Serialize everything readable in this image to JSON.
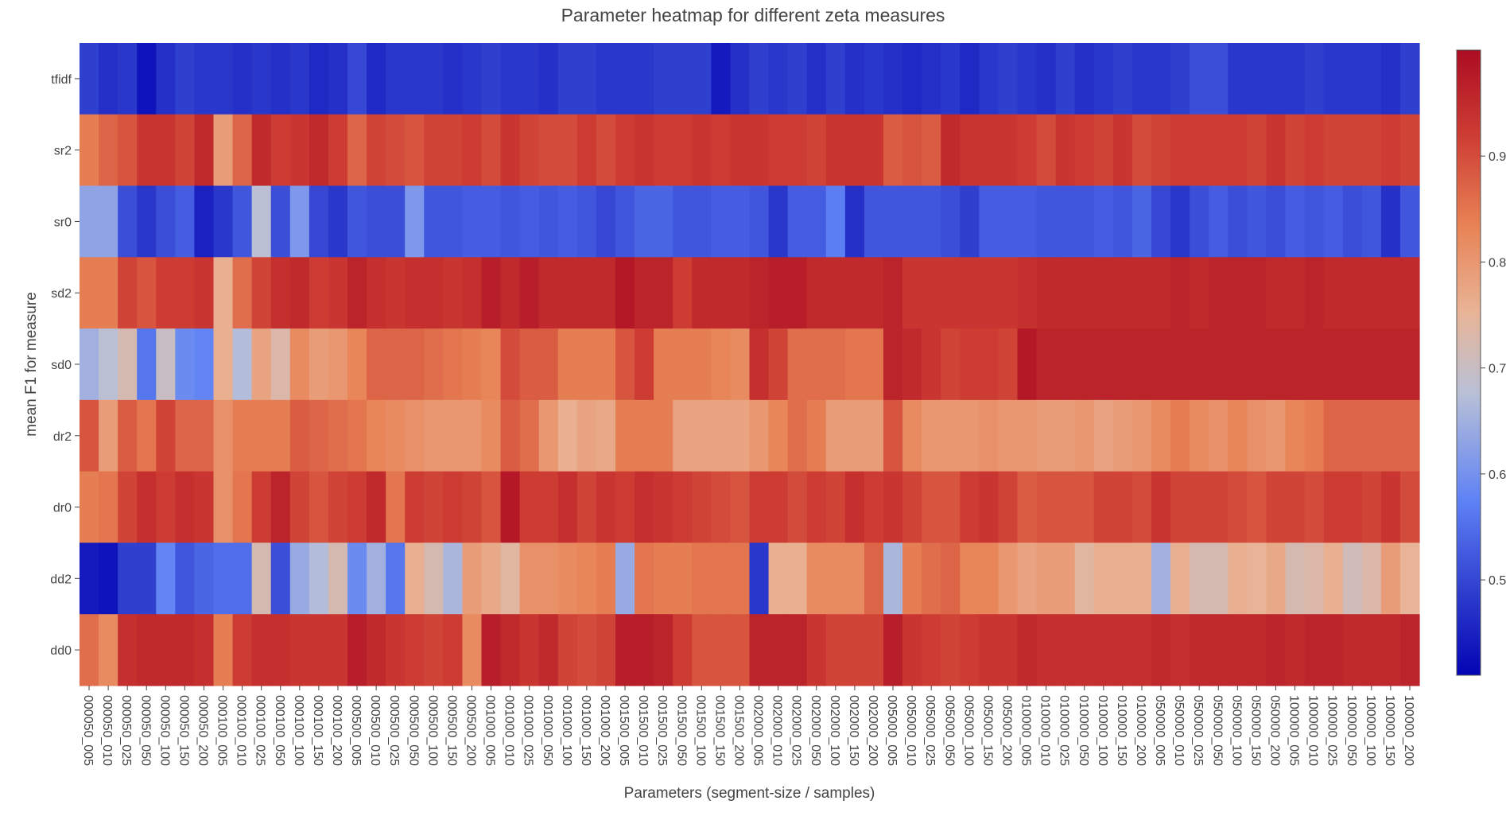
{
  "chart_data": {
    "type": "heatmap",
    "title": "Parameter heatmap for different zeta measures",
    "xlabel": "Parameters (segment-size / samples)",
    "ylabel": "mean F1 for measure",
    "colorscale": "coolwarm",
    "colorbar": {
      "range": [
        0.41,
        1.0
      ],
      "ticks": [
        0.5,
        0.6,
        0.7,
        0.8,
        0.9
      ]
    },
    "x": [
      "000050_005",
      "000050_010",
      "000050_025",
      "000050_050",
      "000050_100",
      "000050_150",
      "000050_200",
      "000100_005",
      "000100_010",
      "000100_025",
      "000100_050",
      "000100_100",
      "000100_150",
      "000100_200",
      "000500_005",
      "000500_010",
      "000500_025",
      "000500_050",
      "000500_100",
      "000500_150",
      "000500_200",
      "001000_005",
      "001000_010",
      "001000_025",
      "001000_050",
      "001000_100",
      "001000_150",
      "001000_200",
      "001500_005",
      "001500_010",
      "001500_025",
      "001500_050",
      "001500_100",
      "001500_150",
      "001500_200",
      "002000_005",
      "002000_010",
      "002000_025",
      "002000_050",
      "002000_100",
      "002000_150",
      "002000_200",
      "005000_005",
      "005000_010",
      "005000_025",
      "005000_050",
      "005000_100",
      "005000_150",
      "005000_200",
      "010000_005",
      "010000_010",
      "010000_025",
      "010000_050",
      "010000_100",
      "010000_150",
      "010000_200",
      "050000_005",
      "050000_010",
      "050000_025",
      "050000_050",
      "050000_100",
      "050000_150",
      "050000_200",
      "100000_005",
      "100000_010",
      "100000_025",
      "100000_050",
      "100000_100",
      "100000_150",
      "100000_200"
    ],
    "x_tick_labels": [
      "000050_005",
      "000050_010",
      "000050_025",
      "000050_050",
      "000050_100",
      "000050_150",
      "000050_200",
      "000100_005",
      "000100_010",
      "000100_025",
      "000100_050",
      "000100_100",
      "000100_150",
      "000100_200",
      "000500_005",
      "000500_010",
      "000500_025",
      "000500_050",
      "000500_100",
      "000500_150",
      "000500_200",
      "001000_005",
      "001000_010",
      "001000_025",
      "001000_050",
      "001000_100",
      "001000_150",
      "001000_200",
      "001500_005",
      "001500_010",
      "001500_025",
      "001500_050",
      "001500_100",
      "001500_150",
      "001500_200",
      "002000_005",
      "002000_010",
      "002000_025",
      "002000_050",
      "002000_100",
      "002000_150",
      "002000_200",
      "005000_005",
      "005000_010",
      "005000_025",
      "005000_050",
      "005000_100",
      "005000_150",
      "005000_200",
      "010000_005",
      "010000_010",
      "010000_025",
      "010000_050",
      "010000_100",
      "010000_150",
      "010000_200",
      "050000_005",
      "050000_010",
      "050000_025",
      "050000_050",
      "050000_100",
      "050000_150",
      "050000_200",
      "100000_005",
      "100000_010",
      "100000_025",
      "100000_050",
      "100000_100",
      "100000_150",
      "100000_200"
    ],
    "y": [
      "tfidf",
      "sr2",
      "sr0",
      "sd2",
      "sd0",
      "dr2",
      "dr0",
      "dd2",
      "dd0"
    ],
    "z": [
      [
        0.49,
        0.47,
        0.48,
        0.43,
        0.47,
        0.49,
        0.48,
        0.48,
        0.47,
        0.48,
        0.47,
        0.48,
        0.46,
        0.47,
        0.5,
        0.46,
        0.48,
        0.48,
        0.48,
        0.47,
        0.48,
        0.49,
        0.48,
        0.48,
        0.47,
        0.49,
        0.49,
        0.48,
        0.48,
        0.48,
        0.49,
        0.49,
        0.49,
        0.44,
        0.47,
        0.49,
        0.48,
        0.49,
        0.47,
        0.49,
        0.47,
        0.48,
        0.47,
        0.46,
        0.47,
        0.48,
        0.46,
        0.48,
        0.49,
        0.48,
        0.47,
        0.49,
        0.47,
        0.48,
        0.49,
        0.48,
        0.48,
        0.49,
        0.51,
        0.51,
        0.48,
        0.48,
        0.48,
        0.48,
        0.49,
        0.48,
        0.48,
        0.48,
        0.47,
        0.49
      ],
      [
        0.84,
        0.87,
        0.89,
        0.93,
        0.93,
        0.91,
        0.95,
        0.79,
        0.87,
        0.95,
        0.92,
        0.93,
        0.95,
        0.92,
        0.87,
        0.91,
        0.9,
        0.89,
        0.91,
        0.91,
        0.92,
        0.9,
        0.93,
        0.91,
        0.9,
        0.9,
        0.92,
        0.9,
        0.92,
        0.93,
        0.92,
        0.92,
        0.93,
        0.92,
        0.93,
        0.93,
        0.92,
        0.92,
        0.91,
        0.93,
        0.93,
        0.93,
        0.88,
        0.89,
        0.88,
        0.95,
        0.93,
        0.93,
        0.93,
        0.92,
        0.9,
        0.93,
        0.92,
        0.91,
        0.93,
        0.9,
        0.91,
        0.92,
        0.92,
        0.92,
        0.92,
        0.91,
        0.93,
        0.91,
        0.92,
        0.91,
        0.91,
        0.91,
        0.92,
        0.91
      ],
      [
        0.63,
        0.63,
        0.51,
        0.48,
        0.51,
        0.53,
        0.45,
        0.48,
        0.52,
        0.68,
        0.51,
        0.61,
        0.5,
        0.48,
        0.52,
        0.51,
        0.51,
        0.61,
        0.52,
        0.52,
        0.53,
        0.53,
        0.52,
        0.53,
        0.52,
        0.53,
        0.52,
        0.5,
        0.52,
        0.54,
        0.54,
        0.52,
        0.52,
        0.53,
        0.53,
        0.52,
        0.48,
        0.53,
        0.53,
        0.57,
        0.47,
        0.52,
        0.52,
        0.52,
        0.52,
        0.51,
        0.49,
        0.53,
        0.53,
        0.53,
        0.52,
        0.52,
        0.52,
        0.53,
        0.52,
        0.54,
        0.5,
        0.48,
        0.51,
        0.53,
        0.51,
        0.52,
        0.51,
        0.53,
        0.52,
        0.53,
        0.51,
        0.52,
        0.47,
        0.52
      ],
      [
        0.84,
        0.84,
        0.91,
        0.89,
        0.92,
        0.92,
        0.93,
        0.76,
        0.86,
        0.91,
        0.94,
        0.95,
        0.92,
        0.93,
        0.96,
        0.94,
        0.93,
        0.94,
        0.94,
        0.93,
        0.94,
        0.97,
        0.95,
        0.97,
        0.95,
        0.95,
        0.95,
        0.95,
        0.98,
        0.96,
        0.96,
        0.92,
        0.95,
        0.95,
        0.95,
        0.96,
        0.97,
        0.97,
        0.95,
        0.95,
        0.95,
        0.95,
        0.96,
        0.93,
        0.93,
        0.93,
        0.93,
        0.93,
        0.93,
        0.94,
        0.95,
        0.95,
        0.95,
        0.95,
        0.95,
        0.95,
        0.95,
        0.96,
        0.95,
        0.96,
        0.96,
        0.96,
        0.95,
        0.95,
        0.96,
        0.95,
        0.95,
        0.95,
        0.95,
        0.95
      ],
      [
        0.65,
        0.68,
        0.72,
        0.56,
        0.7,
        0.59,
        0.58,
        0.76,
        0.67,
        0.78,
        0.73,
        0.82,
        0.79,
        0.8,
        0.83,
        0.87,
        0.87,
        0.87,
        0.86,
        0.85,
        0.84,
        0.83,
        0.9,
        0.88,
        0.88,
        0.84,
        0.84,
        0.84,
        0.89,
        0.92,
        0.84,
        0.84,
        0.84,
        0.83,
        0.82,
        0.94,
        0.91,
        0.86,
        0.86,
        0.86,
        0.85,
        0.85,
        0.96,
        0.95,
        0.93,
        0.91,
        0.92,
        0.92,
        0.91,
        0.98,
        0.96,
        0.96,
        0.96,
        0.96,
        0.96,
        0.96,
        0.96,
        0.96,
        0.96,
        0.96,
        0.96,
        0.96,
        0.96,
        0.96,
        0.96,
        0.96,
        0.96,
        0.96,
        0.96,
        0.96
      ],
      [
        0.89,
        0.79,
        0.88,
        0.85,
        0.91,
        0.87,
        0.87,
        0.81,
        0.84,
        0.84,
        0.84,
        0.88,
        0.87,
        0.86,
        0.85,
        0.83,
        0.82,
        0.81,
        0.8,
        0.8,
        0.8,
        0.82,
        0.88,
        0.86,
        0.8,
        0.76,
        0.78,
        0.77,
        0.84,
        0.84,
        0.84,
        0.78,
        0.78,
        0.78,
        0.78,
        0.8,
        0.83,
        0.86,
        0.84,
        0.79,
        0.79,
        0.79,
        0.89,
        0.82,
        0.8,
        0.8,
        0.8,
        0.81,
        0.8,
        0.8,
        0.79,
        0.79,
        0.8,
        0.78,
        0.79,
        0.8,
        0.82,
        0.84,
        0.82,
        0.81,
        0.83,
        0.81,
        0.8,
        0.83,
        0.84,
        0.87,
        0.87,
        0.87,
        0.87,
        0.87
      ],
      [
        0.84,
        0.85,
        0.91,
        0.94,
        0.92,
        0.94,
        0.93,
        0.81,
        0.85,
        0.92,
        0.96,
        0.91,
        0.89,
        0.91,
        0.92,
        0.95,
        0.85,
        0.92,
        0.91,
        0.92,
        0.91,
        0.89,
        0.98,
        0.92,
        0.92,
        0.94,
        0.91,
        0.93,
        0.92,
        0.94,
        0.93,
        0.92,
        0.91,
        0.9,
        0.89,
        0.92,
        0.92,
        0.9,
        0.92,
        0.91,
        0.94,
        0.92,
        0.93,
        0.91,
        0.89,
        0.89,
        0.92,
        0.93,
        0.91,
        0.88,
        0.89,
        0.89,
        0.89,
        0.91,
        0.91,
        0.9,
        0.93,
        0.91,
        0.91,
        0.91,
        0.9,
        0.89,
        0.91,
        0.91,
        0.9,
        0.92,
        0.92,
        0.91,
        0.93,
        0.9
      ],
      [
        0.44,
        0.43,
        0.49,
        0.49,
        0.58,
        0.52,
        0.54,
        0.55,
        0.55,
        0.72,
        0.51,
        0.64,
        0.67,
        0.72,
        0.59,
        0.65,
        0.56,
        0.76,
        0.72,
        0.66,
        0.79,
        0.77,
        0.74,
        0.81,
        0.81,
        0.82,
        0.83,
        0.84,
        0.64,
        0.85,
        0.84,
        0.84,
        0.85,
        0.85,
        0.85,
        0.48,
        0.76,
        0.76,
        0.82,
        0.82,
        0.82,
        0.87,
        0.66,
        0.84,
        0.86,
        0.87,
        0.83,
        0.83,
        0.8,
        0.78,
        0.79,
        0.79,
        0.74,
        0.76,
        0.76,
        0.76,
        0.65,
        0.76,
        0.72,
        0.72,
        0.76,
        0.75,
        0.77,
        0.72,
        0.73,
        0.76,
        0.71,
        0.73,
        0.79,
        0.75
      ],
      [
        0.86,
        0.82,
        0.94,
        0.95,
        0.95,
        0.95,
        0.94,
        0.84,
        0.92,
        0.94,
        0.94,
        0.93,
        0.93,
        0.93,
        0.97,
        0.95,
        0.93,
        0.92,
        0.91,
        0.92,
        0.82,
        0.97,
        0.95,
        0.93,
        0.95,
        0.91,
        0.9,
        0.91,
        0.97,
        0.97,
        0.96,
        0.92,
        0.89,
        0.89,
        0.89,
        0.96,
        0.96,
        0.96,
        0.93,
        0.91,
        0.91,
        0.91,
        0.97,
        0.93,
        0.92,
        0.91,
        0.92,
        0.93,
        0.93,
        0.95,
        0.94,
        0.94,
        0.94,
        0.94,
        0.94,
        0.94,
        0.95,
        0.94,
        0.95,
        0.95,
        0.95,
        0.95,
        0.96,
        0.95,
        0.96,
        0.96,
        0.95,
        0.95,
        0.95,
        0.96
      ]
    ]
  }
}
